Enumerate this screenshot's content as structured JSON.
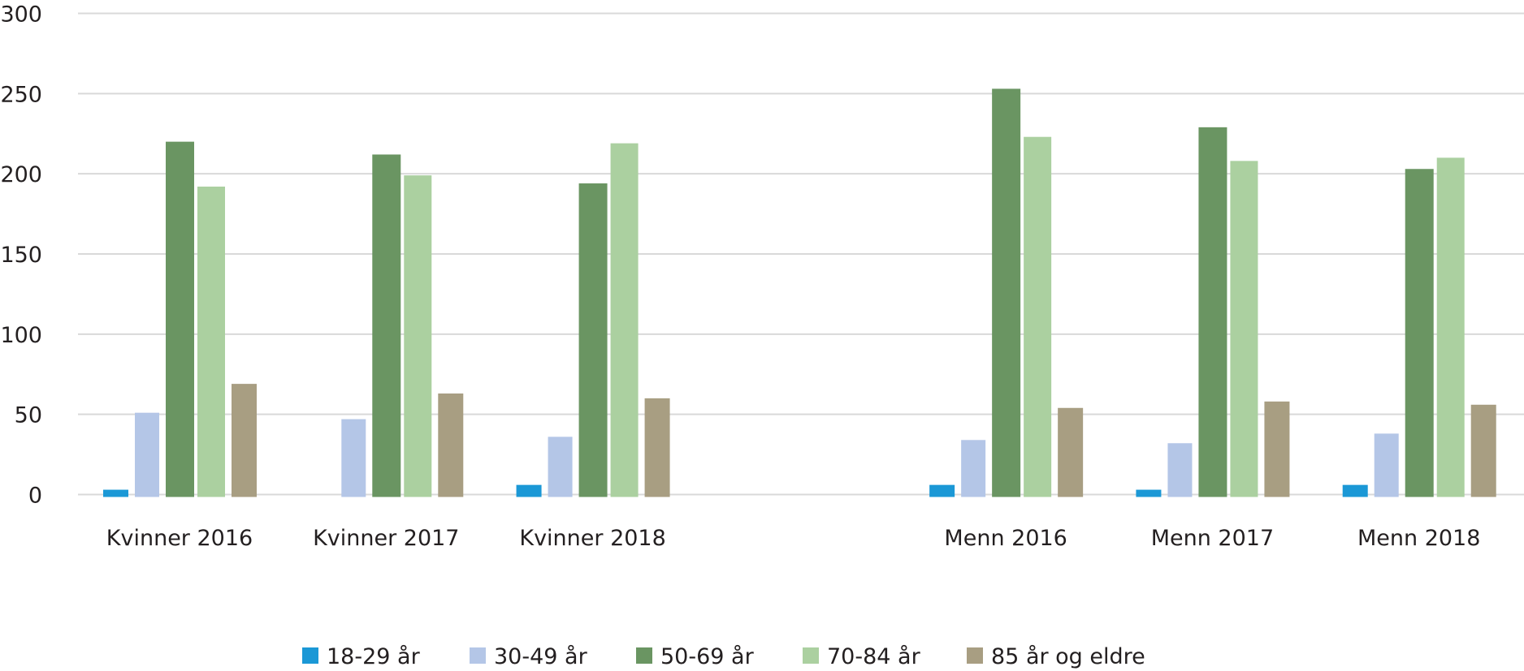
{
  "chart_data": {
    "type": "bar",
    "title": "",
    "xlabel": "",
    "ylabel": "",
    "ylim": [
      0,
      300
    ],
    "yticks": [
      "0",
      "50",
      "100",
      "150",
      "200",
      "250",
      "300"
    ],
    "grid": true,
    "legend_position": "bottom",
    "categories": [
      "Kvinner 2016",
      "Kvinner 2017",
      "Kvinner 2018",
      "",
      "Menn 2016",
      "Menn 2017",
      "Menn 2018"
    ],
    "series": [
      {
        "name": "18-29 år",
        "color": "#1b98d6",
        "values": [
          3,
          0,
          6,
          null,
          6,
          3,
          6
        ]
      },
      {
        "name": "30-49 år",
        "color": "#b4c6e7",
        "values": [
          51,
          47,
          36,
          null,
          34,
          32,
          38
        ]
      },
      {
        "name": "50-69 år",
        "color": "#6a9562",
        "values": [
          220,
          212,
          194,
          null,
          253,
          229,
          203
        ]
      },
      {
        "name": "70-84 år",
        "color": "#abd0a0",
        "values": [
          192,
          199,
          219,
          null,
          223,
          208,
          210
        ]
      },
      {
        "name": "85 år og eldre",
        "color": "#a89e82",
        "values": [
          69,
          63,
          60,
          null,
          54,
          58,
          56
        ]
      }
    ]
  }
}
